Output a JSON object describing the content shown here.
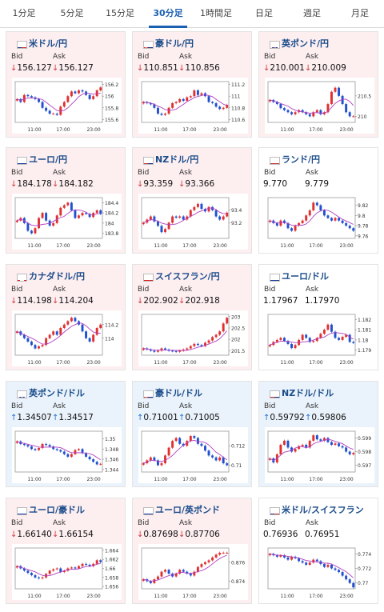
{
  "tabs": [
    "1分足",
    "5分足",
    "15分足",
    "30分足",
    "1時間足",
    "日足",
    "週足",
    "月足"
  ],
  "active_tab": 3,
  "labels": {
    "bid": "Bid",
    "ask": "Ask"
  },
  "x_ticks": [
    "11:00",
    "17:00",
    "23:00"
  ],
  "colors": {
    "down_bg": "#fdeef0",
    "up_bg": "#eaf3fb",
    "candle_up": "#e03030",
    "candle_down": "#2050d0",
    "ma": "#b040c0",
    "arrow_down": "#d23a3a",
    "arrow_up": "#1c6fd0"
  },
  "cards": [
    {
      "title": "米ドル/円",
      "flag": "us-flag-icon",
      "dir": "down",
      "bid": "156.127",
      "ask": "156.127",
      "y_ticks": [
        "156.2",
        "156",
        "155.8",
        "155.6"
      ],
      "ylim": [
        155.55,
        156.25
      ],
      "closes": [
        155.95,
        155.9,
        156.02,
        156.0,
        155.98,
        155.95,
        155.9,
        155.8,
        155.75,
        155.7,
        155.7,
        155.68,
        155.82,
        155.9,
        156.0,
        156.08,
        156.05,
        156.1,
        156.08,
        156.02,
        155.95,
        156.0,
        156.1,
        156.15
      ]
    },
    {
      "title": "豪ドル/円",
      "flag": "au-flag-icon",
      "dir": "down",
      "bid": "110.851",
      "ask": "110.856",
      "y_ticks": [
        "111.2",
        "111",
        "110.8",
        "110.6"
      ],
      "ylim": [
        110.55,
        111.25
      ],
      "closes": [
        110.9,
        110.88,
        110.86,
        110.8,
        110.7,
        110.68,
        110.7,
        110.8,
        110.88,
        110.9,
        110.95,
        110.92,
        110.98,
        111.0,
        111.1,
        111.02,
        111.05,
        111.0,
        110.9,
        110.88,
        110.82,
        110.78,
        110.8,
        110.85
      ]
    },
    {
      "title": "英ポンド/円",
      "flag": "gb-flag-icon",
      "dir": "down",
      "bid": "210.001",
      "ask": "210.009",
      "y_ticks": [
        "210.5",
        "210"
      ],
      "ylim": [
        209.85,
        210.85
      ],
      "closes": [
        210.4,
        210.35,
        210.3,
        210.2,
        210.15,
        210.1,
        210.05,
        210.1,
        210.15,
        210.1,
        210.05,
        210.0,
        210.1,
        210.15,
        210.05,
        210.1,
        210.3,
        210.6,
        210.7,
        210.5,
        210.3,
        210.1,
        210.0,
        210.0
      ]
    },
    {
      "title": "ユーロ/円",
      "flag": "eu-flag-icon",
      "dir": "down",
      "bid": "184.178",
      "ask": "184.182",
      "y_ticks": [
        "184.4",
        "184.2",
        "184",
        "183.8"
      ],
      "ylim": [
        183.7,
        184.5
      ],
      "closes": [
        184.05,
        184.1,
        184.0,
        183.85,
        183.8,
        183.9,
        184.1,
        184.2,
        184.05,
        183.95,
        184.0,
        184.15,
        184.3,
        184.35,
        184.4,
        184.25,
        184.1,
        184.15,
        184.2,
        184.18,
        184.12,
        184.2,
        184.25,
        184.18
      ]
    },
    {
      "title": "NZドル/円",
      "flag": "nz-flag-icon",
      "dir": "down",
      "bid": "93.359",
      "ask": "93.366",
      "y_ticks": [
        "93.4",
        "93.2"
      ],
      "ylim": [
        92.95,
        93.6
      ],
      "closes": [
        93.2,
        93.25,
        93.3,
        93.22,
        93.15,
        93.05,
        93.1,
        93.2,
        93.3,
        93.28,
        93.3,
        93.25,
        93.3,
        93.4,
        93.45,
        93.5,
        93.42,
        93.38,
        93.45,
        93.4,
        93.3,
        93.25,
        93.3,
        93.36
      ]
    },
    {
      "title": "ランド/円",
      "flag": "za-flag-icon",
      "dir": "flat",
      "bid": "9.770",
      "ask": "9.779",
      "y_ticks": [
        "9.82",
        "9.8",
        "9.78",
        "9.76"
      ],
      "ylim": [
        9.755,
        9.835
      ],
      "closes": [
        9.79,
        9.785,
        9.78,
        9.79,
        9.785,
        9.775,
        9.77,
        9.78,
        9.785,
        9.79,
        9.8,
        9.81,
        9.825,
        9.82,
        9.81,
        9.8,
        9.795,
        9.79,
        9.795,
        9.79,
        9.785,
        9.78,
        9.775,
        9.77
      ]
    },
    {
      "title": "カナダドル/円",
      "flag": "ca-flag-icon",
      "dir": "down",
      "bid": "114.198",
      "ask": "114.204",
      "y_ticks": [
        "114.2",
        "114"
      ],
      "ylim": [
        113.75,
        114.35
      ],
      "closes": [
        114.1,
        114.05,
        114.0,
        113.95,
        113.9,
        113.85,
        113.88,
        113.9,
        114.0,
        114.05,
        114.1,
        114.05,
        114.15,
        114.2,
        114.25,
        114.3,
        114.25,
        114.2,
        114.1,
        114.0,
        113.95,
        114.05,
        114.15,
        114.2
      ]
    },
    {
      "title": "スイスフラン/円",
      "flag": "ch-flag-icon",
      "dir": "down",
      "bid": "202.902",
      "ask": "202.918",
      "y_ticks": [
        "203",
        "202.5",
        "202",
        "201.5"
      ],
      "ylim": [
        201.3,
        203.1
      ],
      "closes": [
        201.6,
        201.55,
        201.5,
        201.45,
        201.5,
        201.6,
        201.55,
        201.5,
        201.48,
        201.45,
        201.5,
        201.55,
        201.6,
        201.7,
        201.8,
        201.75,
        201.7,
        201.85,
        201.95,
        202.1,
        202.2,
        202.35,
        202.7,
        202.95
      ]
    },
    {
      "title": "ユーロ/ドル",
      "flag": "eu-flag-icon",
      "dir": "flat",
      "bid": "1.17967",
      "ask": "1.17970",
      "y_ticks": [
        "1.182",
        "1.181",
        "1.18",
        "1.179"
      ],
      "ylim": [
        1.1785,
        1.1825
      ],
      "closes": [
        1.1795,
        1.1798,
        1.18,
        1.1802,
        1.1799,
        1.1796,
        1.1792,
        1.1795,
        1.18,
        1.1805,
        1.1802,
        1.1798,
        1.1799,
        1.1802,
        1.1806,
        1.181,
        1.1815,
        1.1808,
        1.1802,
        1.18,
        1.1803,
        1.1805,
        1.1798,
        1.1797
      ]
    },
    {
      "title": "英ポンド/ドル",
      "flag": "gb-flag-icon",
      "dir": "up",
      "bid": "1.34507",
      "ask": "1.34517",
      "y_ticks": [
        "1.35",
        "1.348",
        "1.346",
        "1.344"
      ],
      "ylim": [
        1.3435,
        1.3515
      ],
      "closes": [
        1.3495,
        1.349,
        1.3488,
        1.3485,
        1.348,
        1.3478,
        1.3482,
        1.349,
        1.3488,
        1.3485,
        1.348,
        1.3478,
        1.3475,
        1.347,
        1.3465,
        1.347,
        1.3478,
        1.348,
        1.3472,
        1.3465,
        1.346,
        1.3455,
        1.345,
        1.3451
      ]
    },
    {
      "title": "豪ドル/ドル",
      "flag": "au-flag-icon",
      "dir": "up",
      "bid": "0.71001",
      "ask": "0.71005",
      "y_ticks": [
        "0.712",
        "0.71"
      ],
      "ylim": [
        0.7093,
        0.7135
      ],
      "closes": [
        0.7102,
        0.7105,
        0.7108,
        0.7105,
        0.71,
        0.7102,
        0.711,
        0.7118,
        0.7125,
        0.7128,
        0.7122,
        0.712,
        0.7125,
        0.713,
        0.7128,
        0.7122,
        0.712,
        0.7115,
        0.711,
        0.7108,
        0.7105,
        0.7108,
        0.7102,
        0.71
      ]
    },
    {
      "title": "NZドル/ドル",
      "flag": "nz-flag-icon",
      "dir": "up",
      "bid": "0.59792",
      "ask": "0.59806",
      "y_ticks": [
        "0.599",
        "0.598",
        "0.597"
      ],
      "ylim": [
        0.5965,
        0.5995
      ],
      "closes": [
        0.5975,
        0.5972,
        0.5978,
        0.5985,
        0.5988,
        0.5983,
        0.598,
        0.5982,
        0.5984,
        0.5985,
        0.5983,
        0.5988,
        0.5992,
        0.5989,
        0.5988,
        0.599,
        0.5987,
        0.5985,
        0.5986,
        0.5984,
        0.5983,
        0.598,
        0.5978,
        0.5979
      ]
    },
    {
      "title": "ユーロ/豪ドル",
      "flag": "eu-flag-icon",
      "dir": "down",
      "bid": "1.66140",
      "ask": "1.66154",
      "y_ticks": [
        "1.664",
        "1.662",
        "1.66",
        "1.658",
        "1.656"
      ],
      "ylim": [
        1.6555,
        1.6645
      ],
      "closes": [
        1.6605,
        1.66,
        1.6595,
        1.659,
        1.6585,
        1.658,
        1.6578,
        1.658,
        1.6588,
        1.6595,
        1.6598,
        1.66,
        1.6592,
        1.6595,
        1.66,
        1.6602,
        1.66,
        1.6605,
        1.661,
        1.6608,
        1.6605,
        1.661,
        1.6618,
        1.6614
      ]
    },
    {
      "title": "ユーロ/英ポンド",
      "flag": "eu-flag-icon",
      "dir": "down",
      "bid": "0.87698",
      "ask": "0.87706",
      "y_ticks": [
        "0.876",
        "0.874"
      ],
      "ylim": [
        0.8732,
        0.8775
      ],
      "closes": [
        0.8742,
        0.874,
        0.8738,
        0.8742,
        0.8745,
        0.875,
        0.8752,
        0.8748,
        0.8745,
        0.8748,
        0.8752,
        0.875,
        0.8748,
        0.8746,
        0.875,
        0.8755,
        0.8758,
        0.876,
        0.8762,
        0.8765,
        0.8768,
        0.877,
        0.877,
        0.877
      ]
    },
    {
      "title": "米ドル/スイスフラン",
      "flag": "us-flag-icon",
      "dir": "flat",
      "bid": "0.76936",
      "ask": "0.76951",
      "y_ticks": [
        "0.774",
        "0.772",
        "0.77"
      ],
      "ylim": [
        0.7692,
        0.7748
      ],
      "closes": [
        0.774,
        0.7738,
        0.7736,
        0.7738,
        0.7735,
        0.7732,
        0.7736,
        0.7734,
        0.773,
        0.7728,
        0.7725,
        0.7728,
        0.7732,
        0.773,
        0.7726,
        0.7722,
        0.7725,
        0.772,
        0.7718,
        0.7715,
        0.771,
        0.7705,
        0.77,
        0.7694
      ]
    }
  ]
}
